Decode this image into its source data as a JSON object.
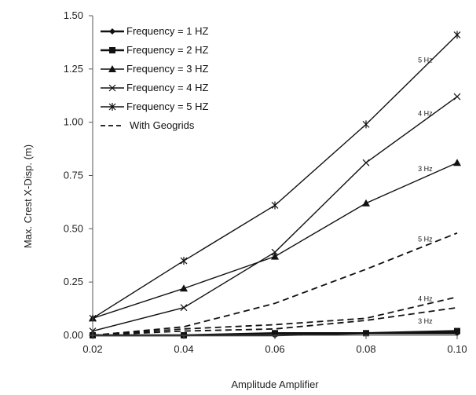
{
  "chart_data": {
    "type": "line",
    "title": "",
    "xlabel": "Amplitude Amplifier",
    "ylabel": "Max. Crest X-Disp. (m)",
    "x": [
      0.02,
      0.04,
      0.06,
      0.08,
      0.1
    ],
    "x_ticks": [
      "0.02",
      "0.04",
      "0.06",
      "0.08",
      "0.10"
    ],
    "y_ticks": [
      "0.00",
      "0.25",
      "0.50",
      "0.75",
      "1.00",
      "1.25",
      "1.50"
    ],
    "xlim": [
      0.02,
      0.1
    ],
    "ylim": [
      0,
      1.5
    ],
    "grid": false,
    "legend_position": "top-left",
    "series": [
      {
        "name": "Frequency = 1 HZ",
        "marker": "diamond",
        "dash": "solid",
        "values": [
          0.0,
          0.0,
          0.0,
          0.01,
          0.01
        ]
      },
      {
        "name": "Frequency = 2 HZ",
        "marker": "square",
        "dash": "solid",
        "values": [
          0.0,
          0.0,
          0.01,
          0.01,
          0.02
        ]
      },
      {
        "name": "Frequency = 3 HZ",
        "marker": "triangle",
        "dash": "solid",
        "values": [
          0.08,
          0.22,
          0.37,
          0.62,
          0.81
        ]
      },
      {
        "name": "Frequency = 4 HZ",
        "marker": "x",
        "dash": "solid",
        "values": [
          0.02,
          0.13,
          0.39,
          0.81,
          1.12
        ]
      },
      {
        "name": "Frequency = 5 HZ",
        "marker": "star",
        "dash": "solid",
        "values": [
          0.08,
          0.35,
          0.61,
          0.99,
          1.41
        ]
      }
    ],
    "geogrid_series": [
      {
        "label": "5 Hz",
        "values": [
          0.0,
          0.04,
          0.15,
          0.31,
          0.48
        ]
      },
      {
        "label": "4 Hz",
        "values": [
          0.0,
          0.03,
          0.05,
          0.08,
          0.18
        ]
      },
      {
        "label": "3 Hz",
        "values": [
          0.0,
          0.02,
          0.03,
          0.07,
          0.13
        ]
      }
    ],
    "geogrid_legend": "With Geogrids",
    "annotations": [
      {
        "text": "5 Hz",
        "x": 0.093,
        "y": 1.28
      },
      {
        "text": "4 Hz",
        "x": 0.093,
        "y": 1.03
      },
      {
        "text": "3 Hz",
        "x": 0.093,
        "y": 0.77
      },
      {
        "text": "5 Hz",
        "x": 0.093,
        "y": 0.44
      },
      {
        "text": "4 Hz",
        "x": 0.093,
        "y": 0.16
      },
      {
        "text": "3 Hz",
        "x": 0.093,
        "y": 0.055
      }
    ]
  }
}
